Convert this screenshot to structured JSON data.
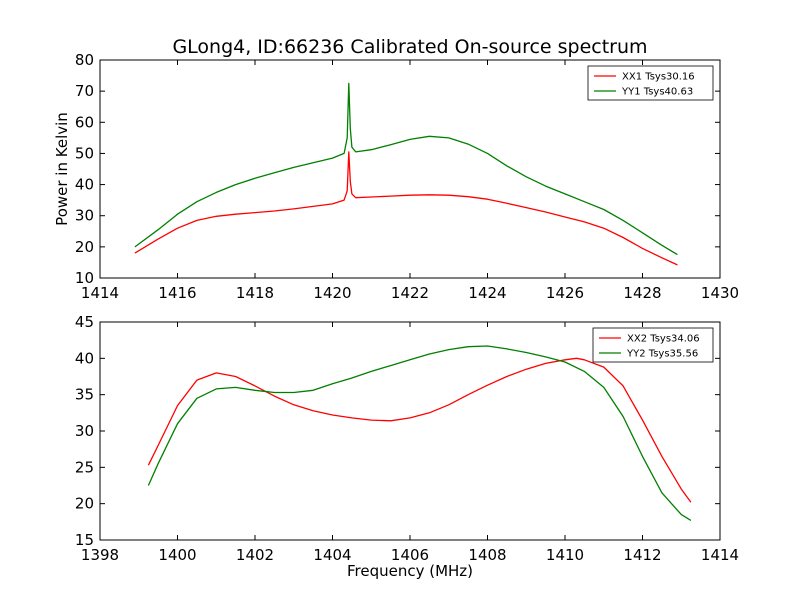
{
  "figure": {
    "title": "GLong4, ID:66236 Calibrated On-source spectrum",
    "shared_ylabel": "Power in Kelvin",
    "shared_xlabel": "Frequency (MHz)"
  },
  "colors": {
    "red": "#ff0000",
    "green": "#008000"
  },
  "chart_data": [
    {
      "type": "line",
      "title": "GLong4, ID:66236 Calibrated On-source spectrum",
      "xlabel": "",
      "ylabel": "Power in Kelvin",
      "xlim": [
        1414,
        1430
      ],
      "ylim": [
        10,
        80
      ],
      "xticks": [
        1414,
        1416,
        1418,
        1420,
        1422,
        1424,
        1426,
        1428,
        1430
      ],
      "yticks": [
        10,
        20,
        30,
        40,
        50,
        60,
        70,
        80
      ],
      "grid": false,
      "legend": "top-right",
      "series": [
        {
          "name": "XX1 Tsys30.16",
          "color": "#ff0000",
          "x": [
            1414.9,
            1415.5,
            1416.0,
            1416.5,
            1417.0,
            1417.5,
            1418.0,
            1418.5,
            1419.0,
            1419.5,
            1420.0,
            1420.3,
            1420.38,
            1420.42,
            1420.46,
            1420.5,
            1420.6,
            1421.0,
            1421.5,
            1422.0,
            1422.5,
            1423.0,
            1423.5,
            1424.0,
            1424.5,
            1425.0,
            1425.5,
            1426.0,
            1426.5,
            1427.0,
            1427.5,
            1428.0,
            1428.5,
            1428.9
          ],
          "y": [
            18.0,
            22.5,
            26.0,
            28.5,
            29.8,
            30.5,
            31.0,
            31.5,
            32.2,
            33.0,
            33.8,
            35.0,
            38.0,
            50.5,
            41.0,
            37.0,
            35.8,
            36.0,
            36.3,
            36.6,
            36.7,
            36.6,
            36.1,
            35.3,
            34.0,
            32.6,
            31.2,
            29.6,
            28.0,
            26.0,
            23.0,
            19.5,
            16.5,
            14.2
          ]
        },
        {
          "name": "YY1 Tsys40.63",
          "color": "#008000",
          "x": [
            1414.9,
            1415.5,
            1416.0,
            1416.5,
            1417.0,
            1417.5,
            1418.0,
            1418.5,
            1419.0,
            1419.5,
            1420.0,
            1420.3,
            1420.38,
            1420.42,
            1420.46,
            1420.5,
            1420.6,
            1421.0,
            1421.5,
            1422.0,
            1422.5,
            1423.0,
            1423.5,
            1424.0,
            1424.5,
            1425.0,
            1425.5,
            1426.0,
            1426.5,
            1427.0,
            1427.5,
            1428.0,
            1428.5,
            1428.9
          ],
          "y": [
            20.0,
            25.5,
            30.5,
            34.5,
            37.5,
            40.0,
            42.0,
            43.8,
            45.5,
            47.0,
            48.5,
            50.0,
            55.0,
            72.5,
            58.0,
            52.0,
            50.5,
            51.2,
            52.8,
            54.5,
            55.5,
            55.0,
            53.0,
            50.0,
            46.0,
            42.5,
            39.5,
            37.0,
            34.5,
            32.0,
            28.5,
            24.5,
            20.5,
            17.5
          ]
        }
      ]
    },
    {
      "type": "line",
      "title": "",
      "xlabel": "Frequency (MHz)",
      "ylabel": "",
      "xlim": [
        1398,
        1414
      ],
      "ylim": [
        15,
        45
      ],
      "xticks": [
        1398,
        1400,
        1402,
        1404,
        1406,
        1408,
        1410,
        1412,
        1414
      ],
      "yticks": [
        15,
        20,
        25,
        30,
        35,
        40,
        45
      ],
      "grid": false,
      "legend": "top-right",
      "series": [
        {
          "name": "XX2 Tsys34.06",
          "color": "#ff0000",
          "x": [
            1399.25,
            1399.5,
            1400.0,
            1400.5,
            1401.0,
            1401.5,
            1402.0,
            1402.5,
            1403.0,
            1403.5,
            1404.0,
            1404.5,
            1405.0,
            1405.5,
            1406.0,
            1406.5,
            1407.0,
            1407.5,
            1408.0,
            1408.5,
            1409.0,
            1409.5,
            1410.0,
            1410.3,
            1410.5,
            1411.0,
            1411.5,
            1412.0,
            1412.5,
            1413.0,
            1413.25
          ],
          "y": [
            25.3,
            28.0,
            33.5,
            37.0,
            38.0,
            37.5,
            36.2,
            34.8,
            33.6,
            32.8,
            32.2,
            31.8,
            31.5,
            31.4,
            31.8,
            32.5,
            33.6,
            35.0,
            36.3,
            37.5,
            38.5,
            39.3,
            39.8,
            40.0,
            39.8,
            38.8,
            36.2,
            31.5,
            26.5,
            22.0,
            20.2
          ]
        },
        {
          "name": "YY2 Tsys35.56",
          "color": "#008000",
          "x": [
            1399.25,
            1399.5,
            1400.0,
            1400.5,
            1401.0,
            1401.5,
            1402.0,
            1402.5,
            1403.0,
            1403.5,
            1404.0,
            1404.5,
            1405.0,
            1405.5,
            1406.0,
            1406.5,
            1407.0,
            1407.5,
            1408.0,
            1408.5,
            1409.0,
            1409.5,
            1410.0,
            1410.5,
            1411.0,
            1411.5,
            1412.0,
            1412.5,
            1413.0,
            1413.25
          ],
          "y": [
            22.5,
            25.5,
            31.0,
            34.5,
            35.8,
            36.0,
            35.6,
            35.3,
            35.3,
            35.6,
            36.5,
            37.3,
            38.2,
            39.0,
            39.8,
            40.6,
            41.2,
            41.6,
            41.7,
            41.3,
            40.8,
            40.2,
            39.5,
            38.2,
            36.0,
            32.0,
            26.5,
            21.5,
            18.5,
            17.7
          ]
        }
      ]
    }
  ]
}
